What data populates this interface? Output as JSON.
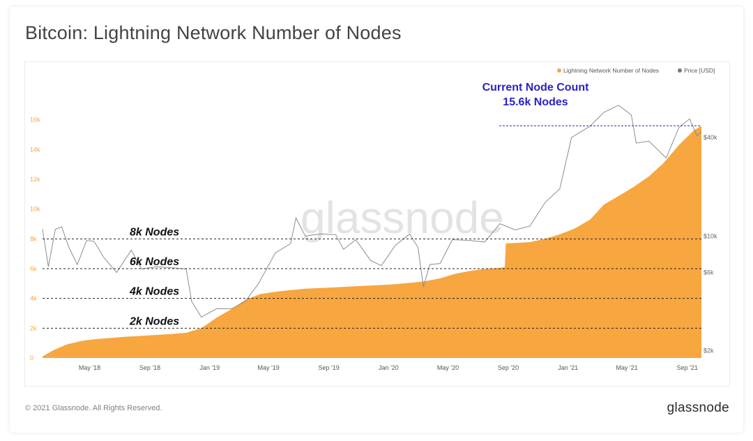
{
  "header": {
    "title": "Bitcoin: Lightning Network Number of Nodes"
  },
  "footer": {
    "copyright": "© 2021 Glassnode. All Rights Reserved.",
    "logo_text": "glassnode"
  },
  "watermark": "glassnode",
  "colors": {
    "nodes_fill": "#f7a640",
    "price_line": "#8c8c8c",
    "annotation_blue": "#2b22c4",
    "grid_dash": "#222222"
  },
  "chart_data": {
    "type": "area",
    "title": "Bitcoin: Lightning Network Number of Nodes",
    "legend": {
      "placement": "top-right",
      "entries": [
        "Lightning Network Number of Nodes",
        "Price [USD]"
      ]
    },
    "x_ticks": [
      "May '18",
      "Sep '18",
      "Jan '19",
      "May '19",
      "Sep '19",
      "Jan '20",
      "May '20",
      "Sep '20",
      "Jan '21",
      "May '21",
      "Sep '21"
    ],
    "x_range": [
      "2018-01-25",
      "2021-09-30"
    ],
    "y_left": {
      "ticks": [
        "0",
        "2k",
        "4k",
        "6k",
        "8k",
        "10k",
        "12k",
        "14k",
        "16k"
      ],
      "range": [
        0,
        18000
      ]
    },
    "y_right": {
      "ticks": [
        "$2k",
        "$6k",
        "$10k",
        "$40k"
      ],
      "scale": "log"
    },
    "series": [
      {
        "name": "Lightning Network Number of Nodes",
        "axis": "left",
        "points": [
          [
            "2018-01-25",
            100
          ],
          [
            "2018-02-15",
            500
          ],
          [
            "2018-03-15",
            900
          ],
          [
            "2018-04-15",
            1150
          ],
          [
            "2018-05-15",
            1270
          ],
          [
            "2018-06-15",
            1350
          ],
          [
            "2018-07-15",
            1430
          ],
          [
            "2018-08-15",
            1480
          ],
          [
            "2018-09-15",
            1550
          ],
          [
            "2018-10-15",
            1610
          ],
          [
            "2018-11-15",
            1700
          ],
          [
            "2018-12-15",
            2000
          ],
          [
            "2019-01-15",
            2700
          ],
          [
            "2019-02-15",
            3300
          ],
          [
            "2019-03-15",
            3900
          ],
          [
            "2019-04-15",
            4300
          ],
          [
            "2019-05-15",
            4450
          ],
          [
            "2019-06-15",
            4560
          ],
          [
            "2019-07-15",
            4650
          ],
          [
            "2019-08-15",
            4700
          ],
          [
            "2019-09-15",
            4750
          ],
          [
            "2019-10-15",
            4800
          ],
          [
            "2019-11-15",
            4850
          ],
          [
            "2019-12-15",
            4900
          ],
          [
            "2020-01-15",
            4960
          ],
          [
            "2020-02-15",
            5050
          ],
          [
            "2020-03-15",
            5150
          ],
          [
            "2020-04-15",
            5350
          ],
          [
            "2020-05-15",
            5650
          ],
          [
            "2020-06-15",
            5850
          ],
          [
            "2020-07-15",
            5980
          ],
          [
            "2020-08-15",
            6050
          ],
          [
            "2020-08-25",
            6100
          ],
          [
            "2020-08-27",
            7700
          ],
          [
            "2020-09-15",
            7720
          ],
          [
            "2020-10-15",
            7780
          ],
          [
            "2020-11-15",
            8000
          ],
          [
            "2020-12-15",
            8300
          ],
          [
            "2021-01-15",
            8700
          ],
          [
            "2021-02-15",
            9300
          ],
          [
            "2021-03-15",
            10300
          ],
          [
            "2021-04-15",
            10900
          ],
          [
            "2021-05-15",
            11500
          ],
          [
            "2021-06-15",
            12200
          ],
          [
            "2021-07-15",
            13100
          ],
          [
            "2021-08-15",
            14300
          ],
          [
            "2021-09-15",
            15300
          ],
          [
            "2021-09-30",
            15600
          ]
        ]
      },
      {
        "name": "Price [USD]",
        "axis": "right",
        "points": [
          [
            "2018-01-25",
            11000
          ],
          [
            "2018-02-06",
            6500
          ],
          [
            "2018-02-20",
            11000
          ],
          [
            "2018-03-05",
            11400
          ],
          [
            "2018-03-20",
            8500
          ],
          [
            "2018-04-06",
            6700
          ],
          [
            "2018-04-25",
            9400
          ],
          [
            "2018-05-10",
            9300
          ],
          [
            "2018-05-30",
            7400
          ],
          [
            "2018-06-25",
            6000
          ],
          [
            "2018-07-25",
            8200
          ],
          [
            "2018-08-15",
            6300
          ],
          [
            "2018-09-15",
            6500
          ],
          [
            "2018-10-15",
            6400
          ],
          [
            "2018-11-14",
            6300
          ],
          [
            "2018-11-25",
            4000
          ],
          [
            "2018-12-15",
            3200
          ],
          [
            "2019-01-15",
            3600
          ],
          [
            "2019-02-15",
            3600
          ],
          [
            "2019-03-15",
            4000
          ],
          [
            "2019-04-10",
            5100
          ],
          [
            "2019-05-15",
            7900
          ],
          [
            "2019-06-15",
            9000
          ],
          [
            "2019-06-26",
            12900
          ],
          [
            "2019-07-15",
            10000
          ],
          [
            "2019-08-15",
            10300
          ],
          [
            "2019-09-15",
            10200
          ],
          [
            "2019-10-01",
            8300
          ],
          [
            "2019-10-26",
            9500
          ],
          [
            "2019-11-25",
            7100
          ],
          [
            "2019-12-17",
            6600
          ],
          [
            "2020-01-15",
            8800
          ],
          [
            "2020-02-13",
            10300
          ],
          [
            "2020-03-01",
            8500
          ],
          [
            "2020-03-12",
            4900
          ],
          [
            "2020-03-25",
            6700
          ],
          [
            "2020-04-15",
            6800
          ],
          [
            "2020-05-10",
            9500
          ],
          [
            "2020-06-15",
            9400
          ],
          [
            "2020-07-15",
            9200
          ],
          [
            "2020-08-15",
            11900
          ],
          [
            "2020-09-15",
            10900
          ],
          [
            "2020-10-15",
            11500
          ],
          [
            "2020-11-15",
            16000
          ],
          [
            "2020-12-15",
            19400
          ],
          [
            "2021-01-08",
            40000
          ],
          [
            "2021-02-15",
            47000
          ],
          [
            "2021-03-15",
            57000
          ],
          [
            "2021-04-14",
            63000
          ],
          [
            "2021-05-10",
            55000
          ],
          [
            "2021-05-20",
            37000
          ],
          [
            "2021-06-15",
            38000
          ],
          [
            "2021-07-20",
            30000
          ],
          [
            "2021-08-15",
            46000
          ],
          [
            "2021-09-06",
            52000
          ],
          [
            "2021-09-21",
            41000
          ],
          [
            "2021-09-30",
            43500
          ]
        ]
      }
    ],
    "reference_lines": [
      {
        "label": "8k Nodes",
        "value": 8000
      },
      {
        "label": "6k Nodes",
        "value": 6000
      },
      {
        "label": "4k Nodes",
        "value": 4000
      },
      {
        "label": "2k Nodes",
        "value": 2000
      }
    ],
    "annotation": {
      "line1": "Current Node Count",
      "line2": "15.6k Nodes",
      "value": 15600
    }
  }
}
